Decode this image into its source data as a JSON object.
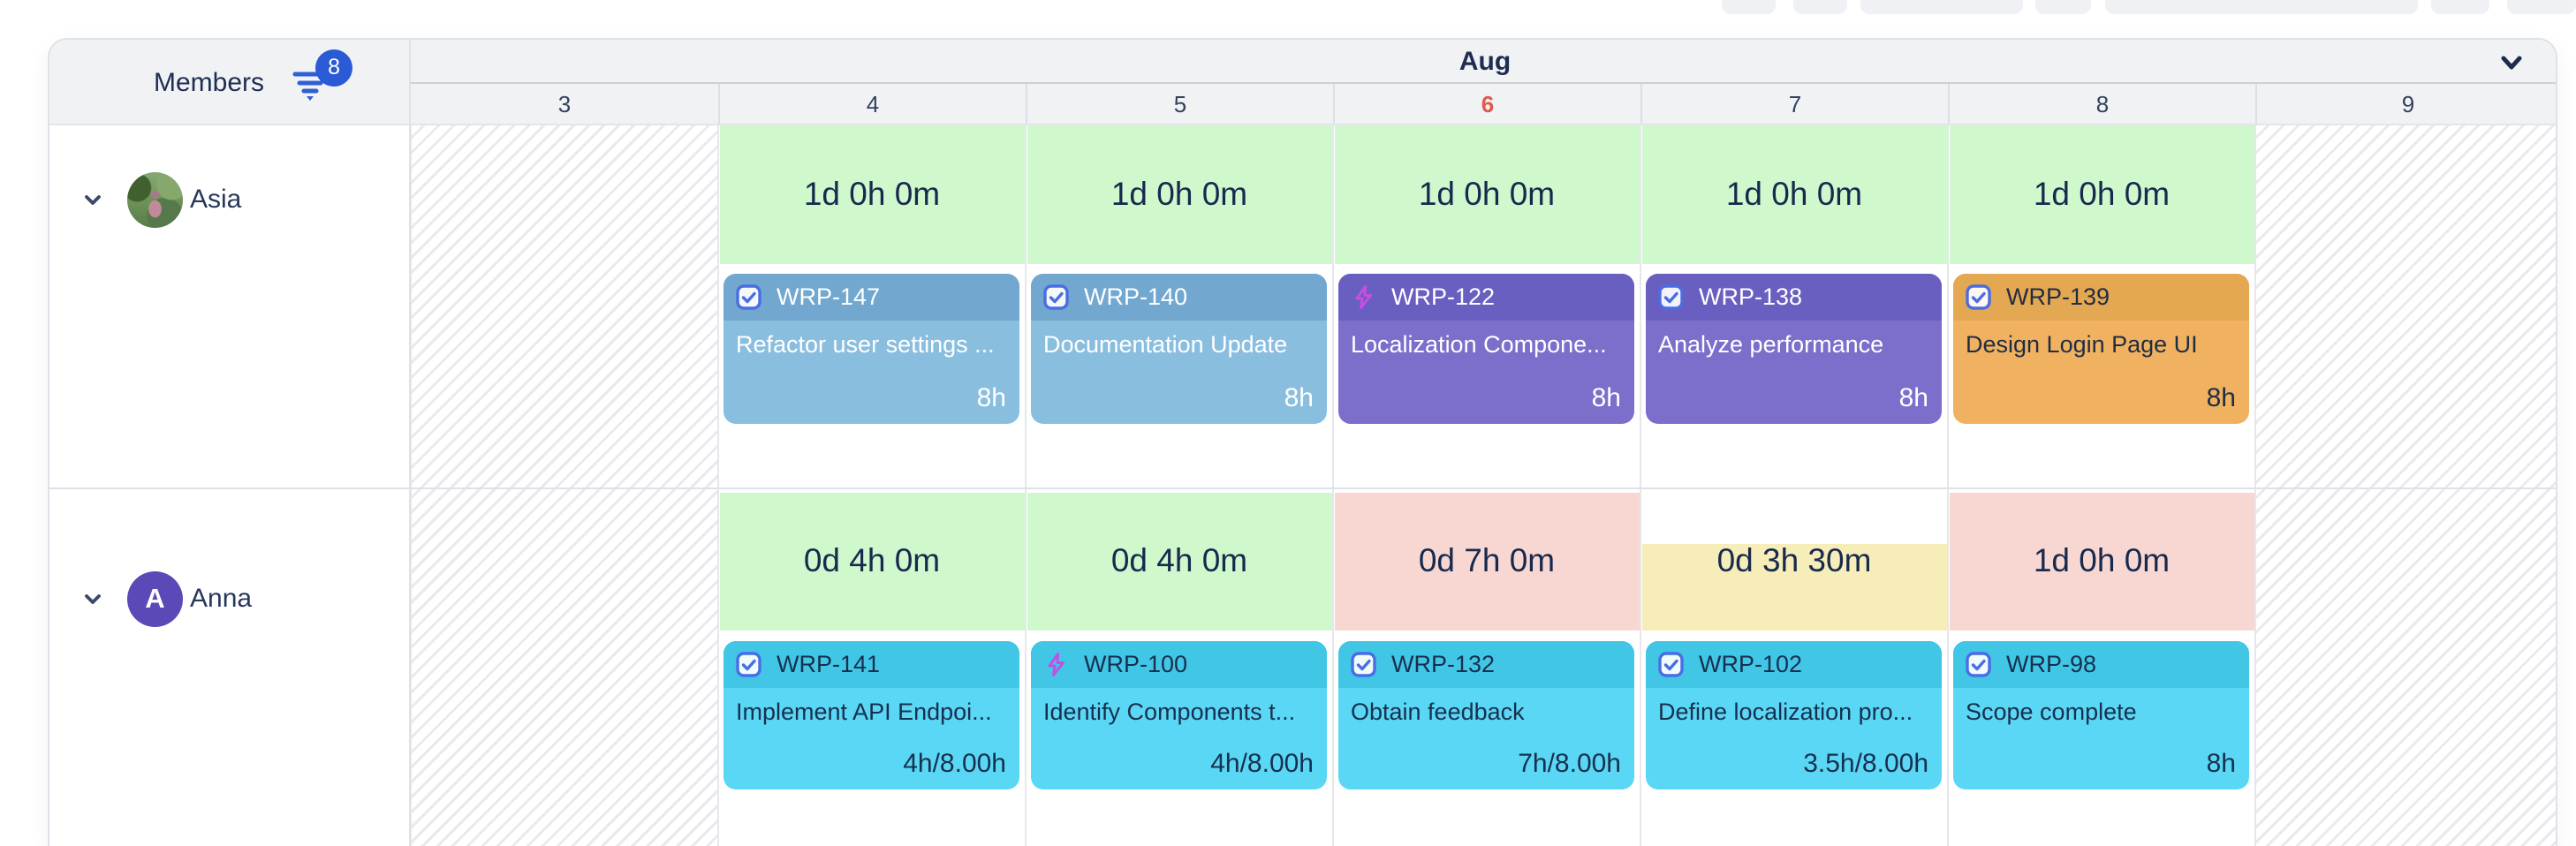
{
  "members_panel": {
    "label": "Members",
    "filter_badge_count": "8"
  },
  "calendar": {
    "month_label": "Aug",
    "days": [
      {
        "label": "3",
        "type": "weekend"
      },
      {
        "label": "4",
        "type": "workday"
      },
      {
        "label": "5",
        "type": "workday"
      },
      {
        "label": "6",
        "type": "today"
      },
      {
        "label": "7",
        "type": "workday"
      },
      {
        "label": "8",
        "type": "workday"
      },
      {
        "label": "9",
        "type": "weekend"
      }
    ]
  },
  "rows": [
    {
      "member": {
        "name": "Asia",
        "avatar": "photo"
      },
      "capacities": [
        {
          "day": "4",
          "text": "1d 0h 0m",
          "status": "green"
        },
        {
          "day": "5",
          "text": "1d 0h 0m",
          "status": "green"
        },
        {
          "day": "6",
          "text": "1d 0h 0m",
          "status": "green"
        },
        {
          "day": "7",
          "text": "1d 0h 0m",
          "status": "green"
        },
        {
          "day": "8",
          "text": "1d 0h 0m",
          "status": "green"
        }
      ],
      "tasks": [
        {
          "day": "4",
          "id": "WRP-147",
          "icon": "checkbox",
          "title": "Refactor user settings ...",
          "effort": "8h",
          "color": "blue"
        },
        {
          "day": "5",
          "id": "WRP-140",
          "icon": "checkbox",
          "title": "Documentation Update",
          "effort": "8h",
          "color": "blue"
        },
        {
          "day": "6",
          "id": "WRP-122",
          "icon": "zap",
          "title": "Localization Compone...",
          "effort": "8h",
          "color": "purple"
        },
        {
          "day": "7",
          "id": "WRP-138",
          "icon": "checkbox",
          "title": "Analyze performance",
          "effort": "8h",
          "color": "purple"
        },
        {
          "day": "8",
          "id": "WRP-139",
          "icon": "checkbox",
          "title": "Design Login Page UI",
          "effort": "8h",
          "color": "orange"
        }
      ]
    },
    {
      "member": {
        "name": "Anna",
        "avatar": "initial",
        "initial": "A"
      },
      "capacities": [
        {
          "day": "4",
          "text": "0d 4h 0m",
          "status": "green"
        },
        {
          "day": "5",
          "text": "0d 4h 0m",
          "status": "green"
        },
        {
          "day": "6",
          "text": "0d 7h 0m",
          "status": "pink"
        },
        {
          "day": "7",
          "text": "0d 3h 30m",
          "status": "yellow",
          "short": true
        },
        {
          "day": "8",
          "text": "1d 0h 0m",
          "status": "pink"
        }
      ],
      "tasks": [
        {
          "day": "4",
          "id": "WRP-141",
          "icon": "checkbox",
          "title": "Implement API Endpoi...",
          "effort": "4h/8.00h",
          "color": "cyan"
        },
        {
          "day": "5",
          "id": "WRP-100",
          "icon": "zap",
          "title": "Identify Components t...",
          "effort": "4h/8.00h",
          "color": "cyan"
        },
        {
          "day": "6",
          "id": "WRP-132",
          "icon": "checkbox",
          "title": "Obtain feedback",
          "effort": "7h/8.00h",
          "color": "cyan"
        },
        {
          "day": "7",
          "id": "WRP-102",
          "icon": "checkbox",
          "title": "Define localization pro...",
          "effort": "3.5h/8.00h",
          "color": "cyan"
        },
        {
          "day": "8",
          "id": "WRP-98",
          "icon": "checkbox",
          "title": "Scope complete",
          "effort": "8h",
          "color": "cyan"
        }
      ]
    }
  ],
  "colors": {
    "capacity_green": "#cff8cd",
    "capacity_pink": "#f8d7d2",
    "capacity_yellow": "#f6edb9",
    "capacity_text": "#17294d",
    "today_red": "#e0584d",
    "accent_blue": "#2a5ad5",
    "card_blue_header": "#72a8cf",
    "card_blue_body": "#8abedf",
    "card_blue_text": "#ffffff",
    "card_purple_header": "#695fc0",
    "card_purple_body": "#7b6fcb",
    "card_purple_text": "#ffffff",
    "card_orange_header": "#e3a851",
    "card_orange_body": "#f0b261",
    "card_orange_text": "#212d42",
    "card_cyan_header": "#41c6e6",
    "card_cyan_body": "#5ad7f4",
    "card_cyan_text": "#16304f",
    "checkbox_icon_blue": "#4b6de4",
    "zap_icon_magenta": "#c44fe2"
  }
}
